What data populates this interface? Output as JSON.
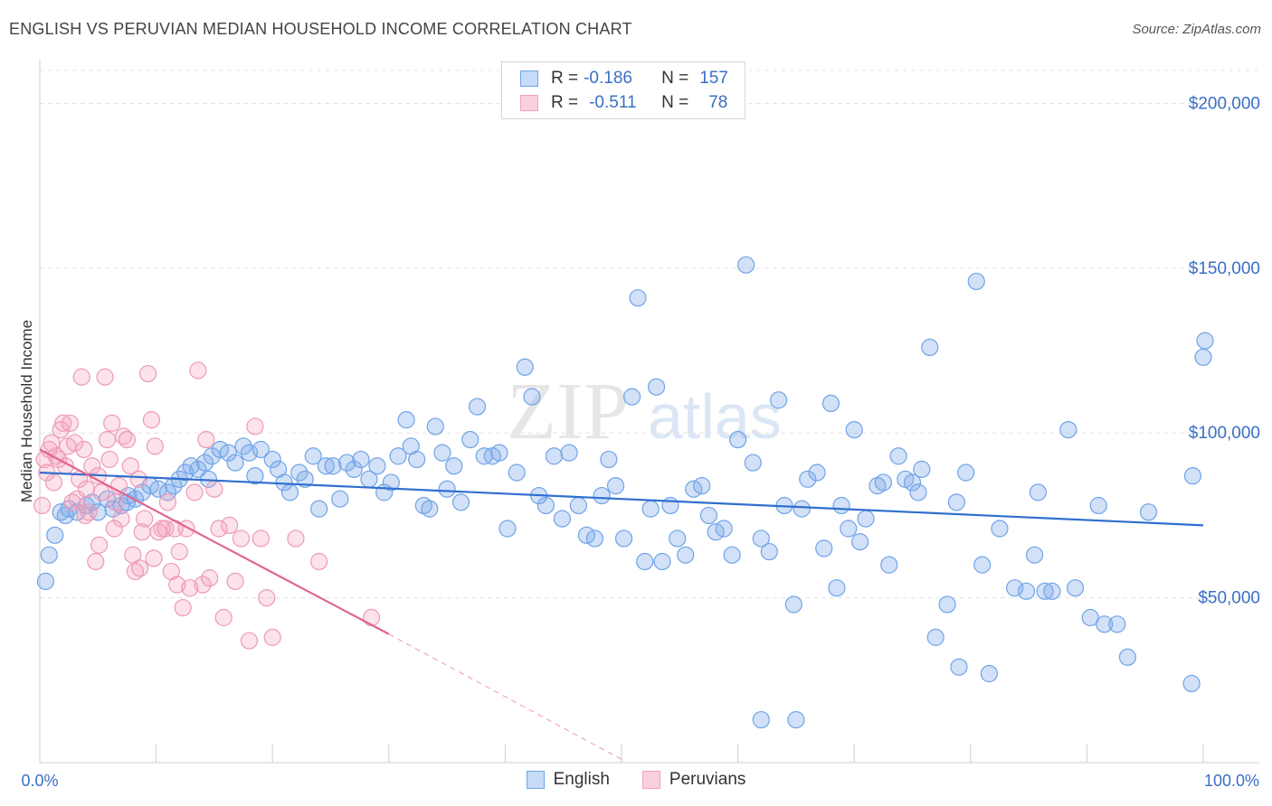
{
  "header": {
    "title": "ENGLISH VS PERUVIAN MEDIAN HOUSEHOLD INCOME CORRELATION CHART",
    "source": "Source: ZipAtlas.com"
  },
  "watermark": {
    "zip": "ZIP",
    "atlas": "atlas"
  },
  "legend": {
    "rows": [
      {
        "r_label": "R =",
        "r_value": "-0.186",
        "n_label": "N =",
        "n_value": "157",
        "color": "#6fa3e8"
      },
      {
        "r_label": "R =",
        "r_value": "-0.511",
        "n_label": "N =",
        "n_value": "78",
        "color": "#f0a0b8"
      }
    ]
  },
  "bottom_legend": [
    {
      "label": "English",
      "color": "#6fa3e8"
    },
    {
      "label": "Peruvians",
      "color": "#f0a0b8"
    }
  ],
  "colors": {
    "english": "#4a86d8",
    "peruvians": "#e8789c",
    "tick_text": "#3a6fc4"
  },
  "chart_data": {
    "type": "scatter",
    "title": "ENGLISH VS PERUVIAN MEDIAN HOUSEHOLD INCOME CORRELATION CHART",
    "xlabel": "",
    "ylabel": "Median Household Income",
    "xlim": [
      0,
      100
    ],
    "ylim": [
      0,
      210000
    ],
    "x_tick_labels": [
      "0.0%",
      "100.0%"
    ],
    "y_ticks": [
      50000,
      100000,
      150000,
      200000
    ],
    "y_tick_labels": [
      "$50,000",
      "$100,000",
      "$150,000",
      "$200,000"
    ],
    "grid": true,
    "legend": "top-center",
    "series": [
      {
        "name": "English",
        "trend": {
          "x": [
            0,
            100
          ],
          "y": [
            88000,
            72000
          ]
        },
        "points": [
          [
            0.5,
            55000
          ],
          [
            0.8,
            63000
          ],
          [
            1.3,
            69000
          ],
          [
            1.8,
            76000
          ],
          [
            2.2,
            75000
          ],
          [
            2.5,
            77000
          ],
          [
            3.2,
            76000
          ],
          [
            4.0,
            78000
          ],
          [
            4.5,
            79000
          ],
          [
            5.0,
            76000
          ],
          [
            5.8,
            80000
          ],
          [
            6.3,
            77000
          ],
          [
            7.0,
            78000
          ],
          [
            7.6,
            81000
          ],
          [
            8.2,
            80000
          ],
          [
            8.8,
            82000
          ],
          [
            9.5,
            84000
          ],
          [
            10.2,
            83000
          ],
          [
            11.0,
            82000
          ],
          [
            11.5,
            84000
          ],
          [
            12.0,
            86000
          ],
          [
            12.5,
            88000
          ],
          [
            13.0,
            90000
          ],
          [
            13.6,
            89000
          ],
          [
            14.2,
            91000
          ],
          [
            14.8,
            93000
          ],
          [
            15.5,
            95000
          ],
          [
            16.2,
            94000
          ],
          [
            16.8,
            91000
          ],
          [
            17.5,
            96000
          ],
          [
            18.0,
            94000
          ],
          [
            18.5,
            87000
          ],
          [
            19.0,
            95000
          ],
          [
            20.0,
            92000
          ],
          [
            20.5,
            89000
          ],
          [
            21.0,
            85000
          ],
          [
            21.5,
            82000
          ],
          [
            22.3,
            88000
          ],
          [
            22.8,
            86000
          ],
          [
            23.5,
            93000
          ],
          [
            24.0,
            77000
          ],
          [
            24.6,
            90000
          ],
          [
            25.2,
            90000
          ],
          [
            25.8,
            80000
          ],
          [
            26.4,
            91000
          ],
          [
            27.0,
            89000
          ],
          [
            27.6,
            92000
          ],
          [
            28.3,
            86000
          ],
          [
            29.0,
            90000
          ],
          [
            29.6,
            82000
          ],
          [
            30.2,
            85000
          ],
          [
            30.8,
            93000
          ],
          [
            31.5,
            104000
          ],
          [
            31.9,
            96000
          ],
          [
            32.4,
            92000
          ],
          [
            33.0,
            78000
          ],
          [
            33.5,
            77000
          ],
          [
            34.0,
            102000
          ],
          [
            34.6,
            94000
          ],
          [
            35.0,
            83000
          ],
          [
            35.6,
            90000
          ],
          [
            36.2,
            79000
          ],
          [
            37.0,
            98000
          ],
          [
            37.6,
            108000
          ],
          [
            38.2,
            93000
          ],
          [
            38.9,
            93000
          ],
          [
            39.5,
            94000
          ],
          [
            40.2,
            71000
          ],
          [
            41.0,
            88000
          ],
          [
            41.7,
            120000
          ],
          [
            42.3,
            111000
          ],
          [
            42.9,
            81000
          ],
          [
            43.5,
            78000
          ],
          [
            44.2,
            93000
          ],
          [
            44.9,
            74000
          ],
          [
            45.5,
            94000
          ],
          [
            46.3,
            78000
          ],
          [
            47.0,
            69000
          ],
          [
            47.7,
            68000
          ],
          [
            48.3,
            81000
          ],
          [
            48.9,
            92000
          ],
          [
            49.5,
            84000
          ],
          [
            50.2,
            68000
          ],
          [
            50.9,
            111000
          ],
          [
            51.4,
            141000
          ],
          [
            52.0,
            61000
          ],
          [
            52.5,
            77000
          ],
          [
            53.0,
            114000
          ],
          [
            53.5,
            61000
          ],
          [
            54.2,
            78000
          ],
          [
            54.8,
            68000
          ],
          [
            55.5,
            63000
          ],
          [
            56.2,
            83000
          ],
          [
            56.9,
            84000
          ],
          [
            57.5,
            75000
          ],
          [
            58.1,
            70000
          ],
          [
            58.8,
            71000
          ],
          [
            59.5,
            63000
          ],
          [
            60.0,
            98000
          ],
          [
            60.7,
            151000
          ],
          [
            61.3,
            91000
          ],
          [
            62.0,
            68000
          ],
          [
            62.7,
            64000
          ],
          [
            63.5,
            110000
          ],
          [
            64.0,
            78000
          ],
          [
            64.8,
            48000
          ],
          [
            65.5,
            77000
          ],
          [
            66.0,
            86000
          ],
          [
            66.8,
            88000
          ],
          [
            67.4,
            65000
          ],
          [
            68.0,
            109000
          ],
          [
            68.5,
            53000
          ],
          [
            68.9,
            78000
          ],
          [
            69.5,
            71000
          ],
          [
            70.0,
            101000
          ],
          [
            70.5,
            67000
          ],
          [
            71.0,
            74000
          ],
          [
            72.0,
            84000
          ],
          [
            72.5,
            85000
          ],
          [
            73.0,
            60000
          ],
          [
            73.8,
            93000
          ],
          [
            74.4,
            86000
          ],
          [
            75.0,
            85000
          ],
          [
            75.5,
            82000
          ],
          [
            75.8,
            89000
          ],
          [
            76.5,
            126000
          ],
          [
            77.0,
            38000
          ],
          [
            78.0,
            48000
          ],
          [
            78.8,
            79000
          ],
          [
            79.0,
            29000
          ],
          [
            79.6,
            88000
          ],
          [
            80.5,
            146000
          ],
          [
            81.0,
            60000
          ],
          [
            81.6,
            27000
          ],
          [
            82.5,
            71000
          ],
          [
            83.8,
            53000
          ],
          [
            84.8,
            52000
          ],
          [
            85.5,
            63000
          ],
          [
            85.8,
            82000
          ],
          [
            86.4,
            52000
          ],
          [
            87.0,
            52000
          ],
          [
            88.4,
            101000
          ],
          [
            89.0,
            53000
          ],
          [
            90.3,
            44000
          ],
          [
            91.0,
            78000
          ],
          [
            91.5,
            42000
          ],
          [
            92.6,
            42000
          ],
          [
            93.5,
            32000
          ],
          [
            95.3,
            76000
          ],
          [
            99.1,
            87000
          ],
          [
            99.0,
            24000
          ],
          [
            100.0,
            123000
          ],
          [
            101.0,
            128000
          ],
          [
            62.0,
            13000
          ],
          [
            65.0,
            13000
          ],
          [
            14.5,
            86000
          ],
          [
            7.5,
            79000
          ]
        ]
      },
      {
        "name": "Peruvians",
        "trend": {
          "x": [
            0,
            30
          ],
          "y": [
            95000,
            39000
          ]
        },
        "trend_extension": {
          "x": [
            30,
            50
          ],
          "y": [
            39000,
            1000
          ]
        },
        "points": [
          [
            0.2,
            78000
          ],
          [
            0.4,
            92000
          ],
          [
            0.6,
            88000
          ],
          [
            0.8,
            95000
          ],
          [
            1.0,
            97000
          ],
          [
            1.2,
            85000
          ],
          [
            1.4,
            93000
          ],
          [
            1.6,
            92000
          ],
          [
            1.8,
            101000
          ],
          [
            2.0,
            103000
          ],
          [
            2.2,
            90000
          ],
          [
            2.4,
            96000
          ],
          [
            2.6,
            103000
          ],
          [
            2.8,
            79000
          ],
          [
            3.0,
            97000
          ],
          [
            3.2,
            80000
          ],
          [
            3.4,
            86000
          ],
          [
            3.6,
            117000
          ],
          [
            3.8,
            95000
          ],
          [
            4.0,
            83000
          ],
          [
            4.2,
            76000
          ],
          [
            4.5,
            90000
          ],
          [
            4.8,
            61000
          ],
          [
            5.0,
            87000
          ],
          [
            5.3,
            82000
          ],
          [
            5.6,
            117000
          ],
          [
            5.8,
            98000
          ],
          [
            6.0,
            92000
          ],
          [
            6.2,
            103000
          ],
          [
            6.5,
            79000
          ],
          [
            6.8,
            84000
          ],
          [
            7.0,
            74000
          ],
          [
            7.2,
            99000
          ],
          [
            7.5,
            98000
          ],
          [
            7.8,
            90000
          ],
          [
            8.0,
            63000
          ],
          [
            8.2,
            58000
          ],
          [
            8.5,
            86000
          ],
          [
            8.8,
            70000
          ],
          [
            9.0,
            74000
          ],
          [
            9.3,
            118000
          ],
          [
            9.6,
            104000
          ],
          [
            9.9,
            96000
          ],
          [
            10.2,
            70000
          ],
          [
            10.5,
            71000
          ],
          [
            10.8,
            71000
          ],
          [
            11.0,
            79000
          ],
          [
            11.3,
            58000
          ],
          [
            11.6,
            71000
          ],
          [
            11.8,
            54000
          ],
          [
            12.0,
            64000
          ],
          [
            12.3,
            47000
          ],
          [
            12.6,
            71000
          ],
          [
            12.9,
            53000
          ],
          [
            13.3,
            82000
          ],
          [
            13.6,
            119000
          ],
          [
            14.0,
            54000
          ],
          [
            14.3,
            98000
          ],
          [
            14.6,
            56000
          ],
          [
            15.0,
            83000
          ],
          [
            15.4,
            71000
          ],
          [
            15.8,
            44000
          ],
          [
            16.3,
            72000
          ],
          [
            16.8,
            55000
          ],
          [
            17.3,
            68000
          ],
          [
            18.0,
            37000
          ],
          [
            18.5,
            102000
          ],
          [
            19.0,
            68000
          ],
          [
            19.5,
            50000
          ],
          [
            20.0,
            38000
          ],
          [
            22.0,
            68000
          ],
          [
            24.0,
            61000
          ],
          [
            28.5,
            44000
          ],
          [
            9.8,
            62000
          ],
          [
            8.6,
            59000
          ],
          [
            6.4,
            71000
          ],
          [
            5.1,
            66000
          ],
          [
            3.9,
            75000
          ]
        ]
      }
    ]
  }
}
